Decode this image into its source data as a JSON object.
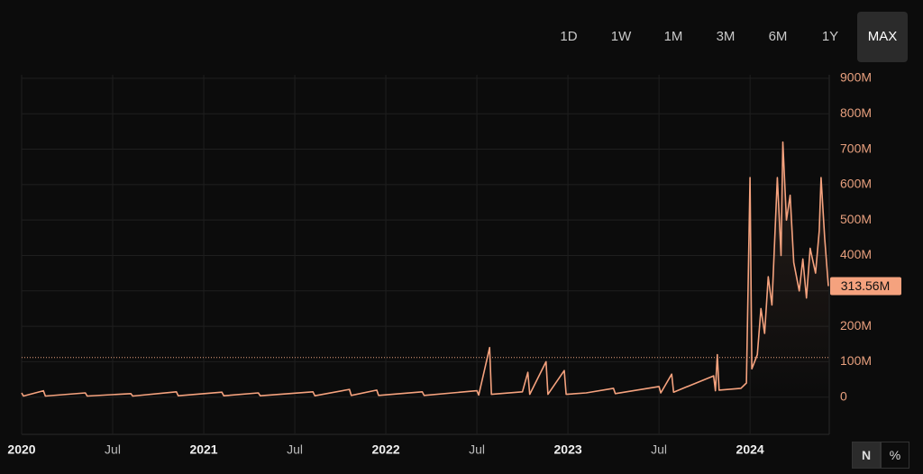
{
  "range_buttons": [
    "1D",
    "1W",
    "1M",
    "3M",
    "6M",
    "1Y",
    "MAX"
  ],
  "selected_range": 6,
  "scale_buttons": [
    "N",
    "%"
  ],
  "chart_data": {
    "type": "line",
    "x": [
      2020.0,
      2020.01,
      2020.12,
      2020.13,
      2020.35,
      2020.36,
      2020.6,
      2020.61,
      2020.85,
      2020.86,
      2021.1,
      2021.11,
      2021.3,
      2021.31,
      2021.6,
      2021.61,
      2021.8,
      2021.81,
      2021.95,
      2021.96,
      2022.2,
      2022.21,
      2022.5,
      2022.51,
      2022.57,
      2022.58,
      2022.75,
      2022.78,
      2022.79,
      2022.88,
      2022.89,
      2022.98,
      2022.99,
      2023.1,
      2023.25,
      2023.26,
      2023.5,
      2023.51,
      2023.57,
      2023.58,
      2023.8,
      2023.81,
      2023.82,
      2023.83,
      2023.95,
      2023.98,
      2024.0,
      2024.01,
      2024.04,
      2024.06,
      2024.08,
      2024.1,
      2024.12,
      2024.15,
      2024.17,
      2024.18,
      2024.2,
      2024.22,
      2024.24,
      2024.27,
      2024.29,
      2024.31,
      2024.33,
      2024.36,
      2024.38,
      2024.39,
      2024.41,
      2024.43
    ],
    "series": [
      {
        "color": "#f5a27e",
        "values": [
          12,
          3,
          18,
          3,
          12,
          3,
          10,
          3,
          15,
          4,
          14,
          4,
          12,
          4,
          15,
          4,
          22,
          5,
          20,
          5,
          15,
          5,
          18,
          6,
          140,
          8,
          15,
          70,
          8,
          100,
          8,
          75,
          8,
          12,
          25,
          10,
          30,
          12,
          65,
          14,
          60,
          18,
          120,
          20,
          25,
          40,
          620,
          80,
          120,
          250,
          180,
          340,
          260,
          620,
          400,
          720,
          500,
          570,
          380,
          300,
          390,
          280,
          420,
          350,
          470,
          620,
          450,
          313.56
        ]
      }
    ],
    "last_value": 313.56,
    "last_value_label": "313.56M",
    "reference_line": 112,
    "xlim": [
      2020,
      2024.435
    ],
    "xticks": [
      {
        "value": 2020,
        "label": "2020"
      },
      {
        "value": 2020.5,
        "label": "Jul"
      },
      {
        "value": 2021,
        "label": "2021"
      },
      {
        "value": 2021.5,
        "label": "Jul"
      },
      {
        "value": 2022,
        "label": "2022"
      },
      {
        "value": 2022.5,
        "label": "Jul"
      },
      {
        "value": 2023,
        "label": "2023"
      },
      {
        "value": 2023.5,
        "label": "Jul"
      },
      {
        "value": 2024,
        "label": "2024"
      }
    ],
    "ylim": [
      -105,
      910
    ],
    "yticks": [
      0,
      {
        "value": 100,
        "label": "100M"
      },
      {
        "value": 200,
        "label": "200M"
      },
      {
        "value": 300,
        "label": "300M"
      },
      {
        "value": 400,
        "label": "400M"
      },
      {
        "value": 500,
        "label": "500M"
      },
      {
        "value": 600,
        "label": "600M"
      },
      {
        "value": 700,
        "label": "700M"
      },
      {
        "value": 800,
        "label": "800M"
      },
      {
        "value": 900,
        "label": "900M"
      }
    ],
    "grid": true
  }
}
